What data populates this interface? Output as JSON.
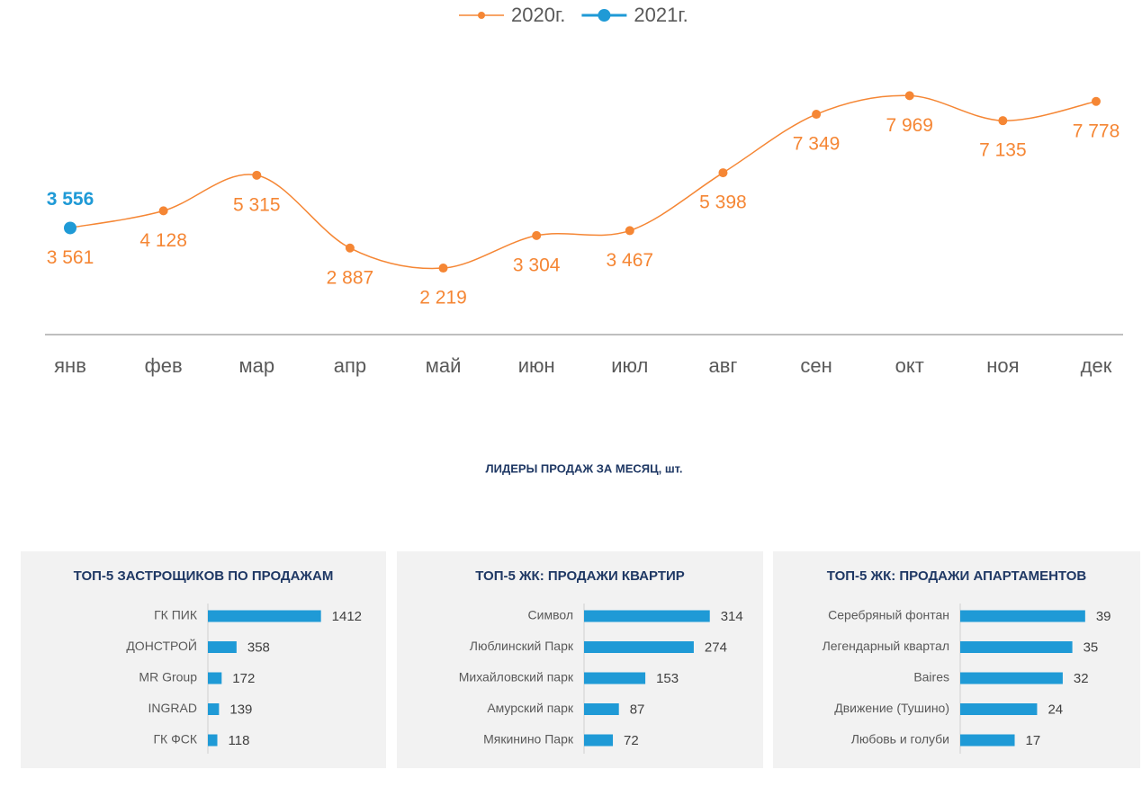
{
  "chart_data": [
    {
      "type": "line",
      "categories": [
        "янв",
        "фев",
        "мар",
        "апр",
        "май",
        "июн",
        "июл",
        "авг",
        "сен",
        "окт",
        "ноя",
        "дек"
      ],
      "ylim": [
        0,
        9000
      ],
      "legend": "top",
      "series": [
        {
          "name": "2020г.",
          "color": "#f58634",
          "values": [
            3561,
            4128,
            5315,
            2887,
            2219,
            3304,
            3467,
            5398,
            7349,
            7969,
            7135,
            7778
          ],
          "value_labels": [
            "3 561",
            "4 128",
            "5 315",
            "2 887",
            "2 219",
            "3 304",
            "3 467",
            "5 398",
            "7 349",
            "7 969",
            "7 135",
            "7 778"
          ]
        },
        {
          "name": "2021г.",
          "color": "#1f9ad6",
          "values": [
            3556,
            null,
            null,
            null,
            null,
            null,
            null,
            null,
            null,
            null,
            null,
            null
          ],
          "value_labels": [
            "3 556",
            null,
            null,
            null,
            null,
            null,
            null,
            null,
            null,
            null,
            null,
            null
          ]
        }
      ]
    },
    {
      "type": "barh",
      "title": "ТОП-5 ЗАСТРОЩИКОВ ПО ПРОДАЖАМ",
      "color": "#1f9ad6",
      "categories": [
        "ГК ПИК",
        "ДОНСТРОЙ",
        "MR Group",
        "INGRAD",
        "ГК ФСК"
      ],
      "values": [
        1412,
        358,
        172,
        139,
        118
      ],
      "xlim": [
        0,
        2000
      ]
    },
    {
      "type": "barh",
      "title": "ТОП-5 ЖК: ПРОДАЖИ КВАРТИР",
      "color": "#1f9ad6",
      "categories": [
        "Символ",
        "Люблинский Парк",
        "Михайловский парк",
        "Амурский парк",
        "Мякинино Парк"
      ],
      "values": [
        314,
        274,
        153,
        87,
        72
      ],
      "xlim": [
        0,
        400
      ]
    },
    {
      "type": "barh",
      "title": "ТОП-5 ЖК: ПРОДАЖИ АПАРТАМЕНТОВ",
      "color": "#1f9ad6",
      "categories": [
        "Серебряный фонтан",
        "Легендарный квартал",
        "Baires",
        "Движение (Тушино)",
        "Любовь и голуби"
      ],
      "values": [
        39,
        35,
        32,
        24,
        17
      ],
      "xlim": [
        0,
        50
      ]
    }
  ],
  "section_title": "ЛИДЕРЫ ПРОДАЖ ЗА МЕСЯЦ, шт."
}
